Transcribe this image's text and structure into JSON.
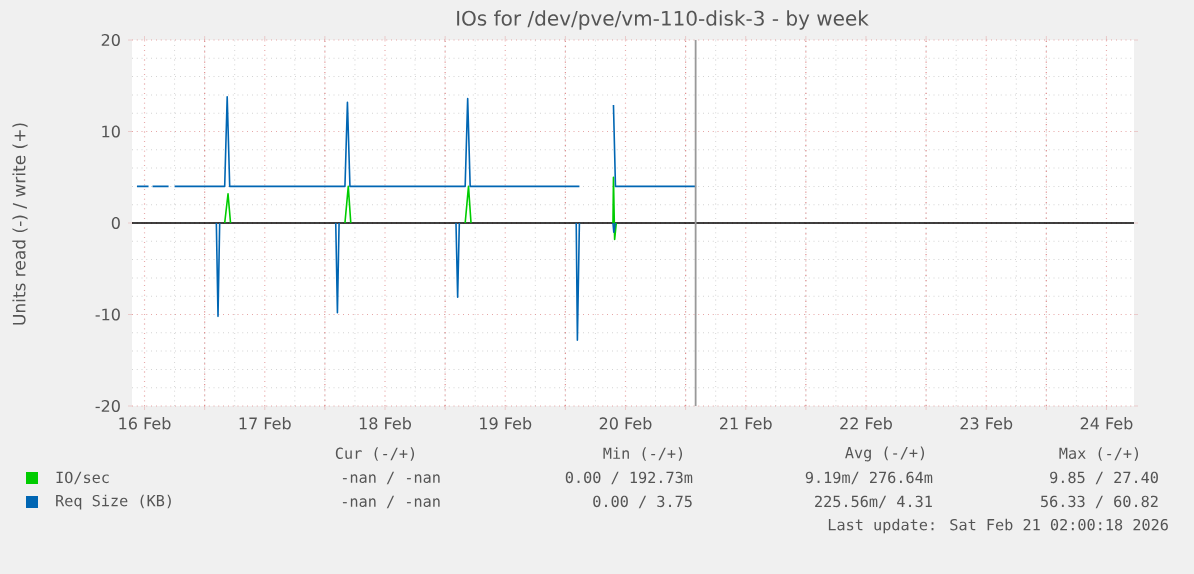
{
  "chart_data": {
    "type": "line",
    "title": "IOs for /dev/pve/vm-110-disk-3 - by week",
    "ylabel": "Units read (-) / write (+)",
    "xlim": [
      "2026-02-16T09:30",
      "2026-02-24T17:30"
    ],
    "ylim": [
      -20,
      20
    ],
    "xticks": [
      {
        "value": "2026-02-16T12:00",
        "label": "16 Feb"
      },
      {
        "value": "2026-02-17T12:00",
        "label": "17 Feb"
      },
      {
        "value": "2026-02-18T12:00",
        "label": "18 Feb"
      },
      {
        "value": "2026-02-19T12:00",
        "label": "19 Feb"
      },
      {
        "value": "2026-02-20T12:00",
        "label": "20 Feb"
      },
      {
        "value": "2026-02-21T12:00",
        "label": "21 Feb"
      },
      {
        "value": "2026-02-22T12:00",
        "label": "22 Feb"
      },
      {
        "value": "2026-02-23T12:00",
        "label": "23 Feb"
      },
      {
        "value": "2026-02-24T12:00",
        "label": "24 Feb"
      },
      {
        "value": "2026-02-17T00:00",
        "label": null
      },
      {
        "value": "2026-02-18T00:00",
        "label": null
      },
      {
        "value": "2026-02-19T00:00",
        "label": null
      },
      {
        "value": "2026-02-20T00:00",
        "label": null
      },
      {
        "value": "2026-02-21T00:00",
        "label": null
      },
      {
        "value": "2026-02-22T00:00",
        "label": null
      },
      {
        "value": "2026-02-23T00:00",
        "label": null
      },
      {
        "value": "2026-02-24T00:00",
        "label": null
      }
    ],
    "yticks": [
      -20,
      -10,
      0,
      10,
      20
    ],
    "grid": true,
    "legend": "bottom",
    "line_style": "solid",
    "ref_lines": [
      {
        "axis": "x",
        "value": "2026-02-21T02:00",
        "color": "#999999"
      }
    ],
    "series": [
      {
        "name": "IO/sec",
        "color": "#00cc00",
        "x": [
          "2026-02-17T04:00",
          "2026-02-17T04:40",
          "2026-02-17T05:10",
          "2026-02-17T06:00",
          "2026-02-18T04:00",
          "2026-02-18T04:40",
          "2026-02-18T05:10",
          "2026-02-18T06:00",
          "2026-02-19T04:00",
          "2026-02-19T04:40",
          "2026-02-19T05:10",
          "2026-02-19T06:00",
          "2026-02-20T09:30",
          "2026-02-20T09:36",
          "2026-02-20T09:50",
          "2026-02-20T10:10"
        ],
        "values": [
          0,
          3.2,
          0,
          null,
          0,
          4,
          0,
          null,
          0,
          4,
          0,
          null,
          0,
          5,
          -1.8,
          0
        ]
      },
      {
        "name": "Req Size (KB)",
        "color": "#0066b3",
        "x": [
          "2026-02-16T10:30",
          "2026-02-16T12:48",
          "2026-02-16T13:00",
          "2026-02-16T13:36",
          "2026-02-16T16:48",
          "2026-02-16T17:10",
          "2026-02-16T18:00",
          "2026-02-17T04:00",
          "2026-02-17T04:30",
          "2026-02-17T05:00",
          "2026-02-18T04:00",
          "2026-02-18T04:30",
          "2026-02-18T05:00",
          "2026-02-19T04:00",
          "2026-02-19T04:30",
          "2026-02-19T05:00",
          "2026-02-20T02:48",
          "2026-02-20T05:00",
          "2026-02-20T09:36",
          "2026-02-20T10:00",
          "2026-02-21T02:06"
        ],
        "values": [
          4,
          4,
          null,
          4,
          4,
          null,
          4,
          4,
          13.8,
          4,
          4,
          13.2,
          4,
          4,
          13.6,
          4,
          4,
          null,
          12.9,
          4,
          4
        ]
      },
      {
        "color": "#0066b3",
        "x": [
          "2026-02-17T02:20",
          "2026-02-17T02:40",
          "2026-02-17T03:00",
          "2026-02-17T03:30",
          "2026-02-18T02:10",
          "2026-02-18T02:30",
          "2026-02-18T02:50",
          "2026-02-18T03:30",
          "2026-02-19T02:10",
          "2026-02-19T02:30",
          "2026-02-19T02:50",
          "2026-02-19T03:30",
          "2026-02-20T02:10",
          "2026-02-20T02:24",
          "2026-02-20T02:48",
          "2026-02-20T05:00",
          "2026-02-20T09:30",
          "2026-02-20T09:40",
          "2026-02-20T10:00"
        ],
        "values": [
          0,
          -10.2,
          0,
          null,
          0,
          -9.8,
          0,
          null,
          0,
          -8.1,
          0,
          null,
          0,
          -12.8,
          0,
          null,
          0,
          -1,
          0
        ]
      }
    ],
    "annotations": [
      "Cur (-/+)",
      "Min (-/+)",
      "Avg (-/+)",
      "Max (-/+)",
      "-nan /   -nan",
      "0.00 / 192.73m",
      "9.19m/ 276.64m",
      "9.85 /  27.40",
      "-nan /   -nan",
      "0.00 /    3.75",
      "225.56m/   4.31",
      "56.33 /  60.82",
      "Last update: Sat Feb 21 02:00:18 2026"
    ]
  }
}
